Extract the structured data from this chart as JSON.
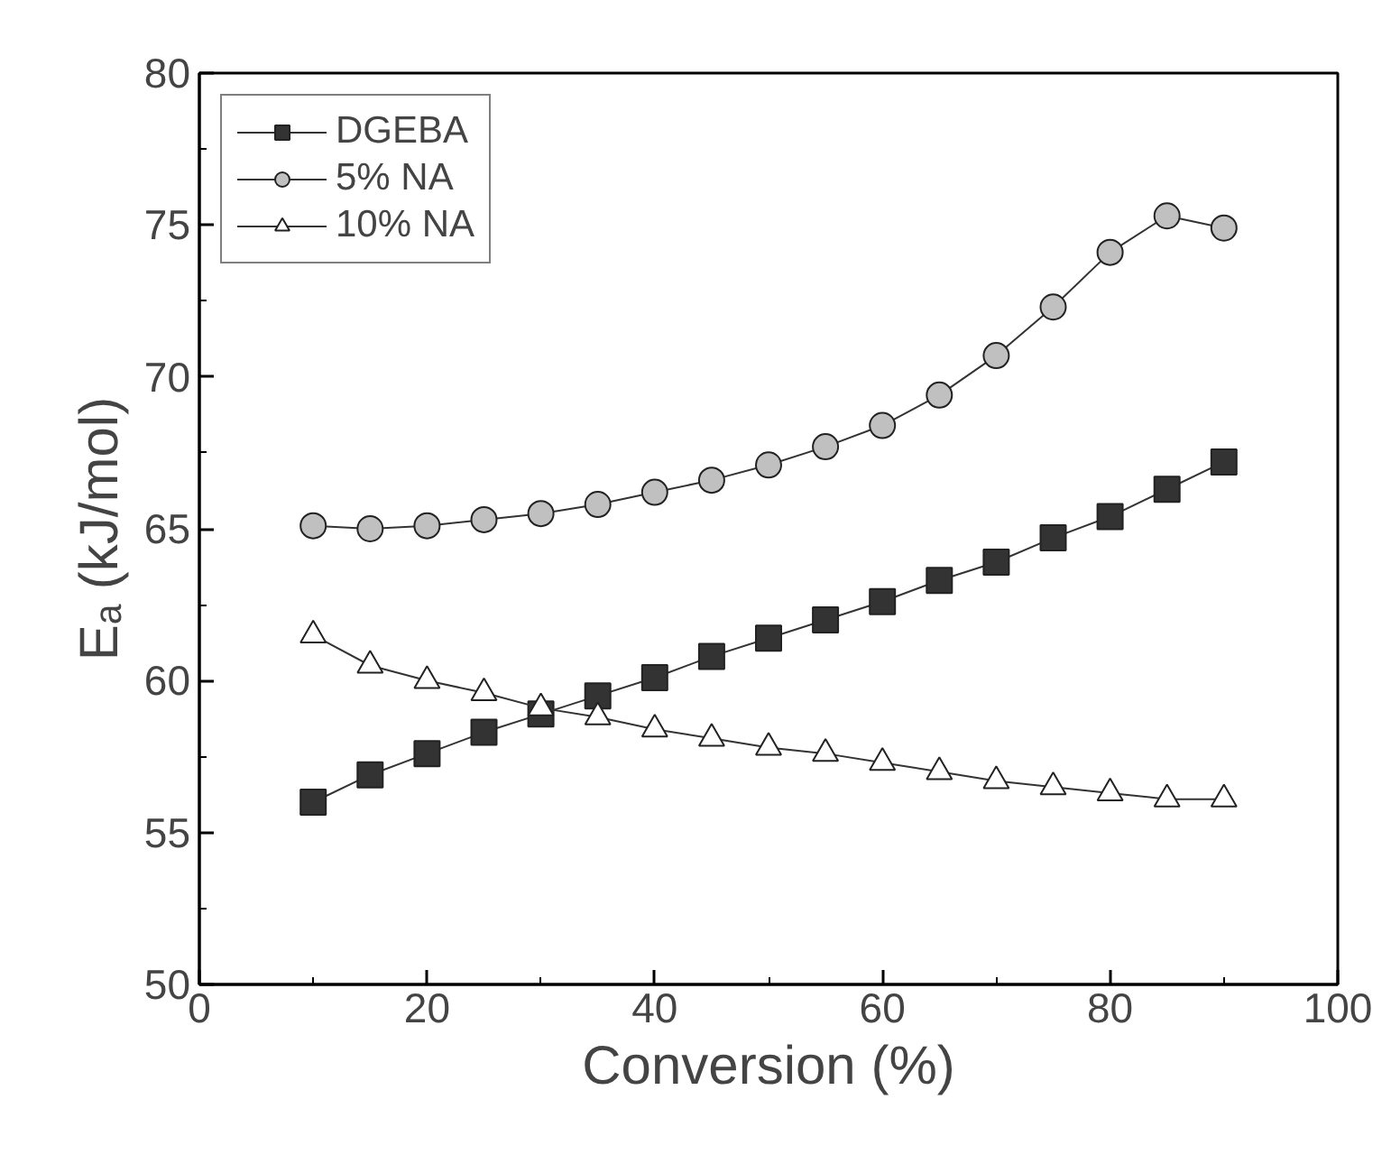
{
  "chart_data": {
    "type": "line",
    "xlabel": "Conversion (%)",
    "ylabel": "Eₐ (kJ/mol)",
    "x": [
      10,
      15,
      20,
      25,
      30,
      35,
      40,
      45,
      50,
      55,
      60,
      65,
      70,
      75,
      80,
      85,
      90
    ],
    "xlim": [
      0,
      100
    ],
    "xticks": [
      0,
      20,
      40,
      60,
      80,
      100
    ],
    "ylim": [
      50,
      80
    ],
    "yticks": [
      50,
      55,
      60,
      65,
      70,
      75,
      80
    ],
    "legend": "top left",
    "grid": false,
    "series": [
      {
        "name": "DGEBA",
        "color": "#333333",
        "marker": "square",
        "values": [
          56.0,
          56.9,
          57.6,
          58.3,
          58.9,
          59.5,
          60.1,
          60.8,
          61.4,
          62.0,
          62.6,
          63.3,
          63.9,
          64.7,
          65.4,
          66.3,
          67.2
        ]
      },
      {
        "name": "5% NA",
        "color": "#c0c0c0",
        "marker": "circle",
        "values": [
          65.1,
          65.0,
          65.1,
          65.3,
          65.5,
          65.8,
          66.2,
          66.6,
          67.1,
          67.7,
          68.4,
          69.4,
          70.7,
          72.3,
          74.1,
          75.3,
          74.9
        ]
      },
      {
        "name": "10% NA",
        "color": "#ffffff",
        "marker": "triangle",
        "values": [
          61.5,
          60.5,
          60.0,
          59.6,
          59.1,
          58.8,
          58.4,
          58.1,
          57.8,
          57.6,
          57.3,
          57.0,
          56.7,
          56.5,
          56.3,
          56.1,
          56.1
        ]
      }
    ]
  }
}
